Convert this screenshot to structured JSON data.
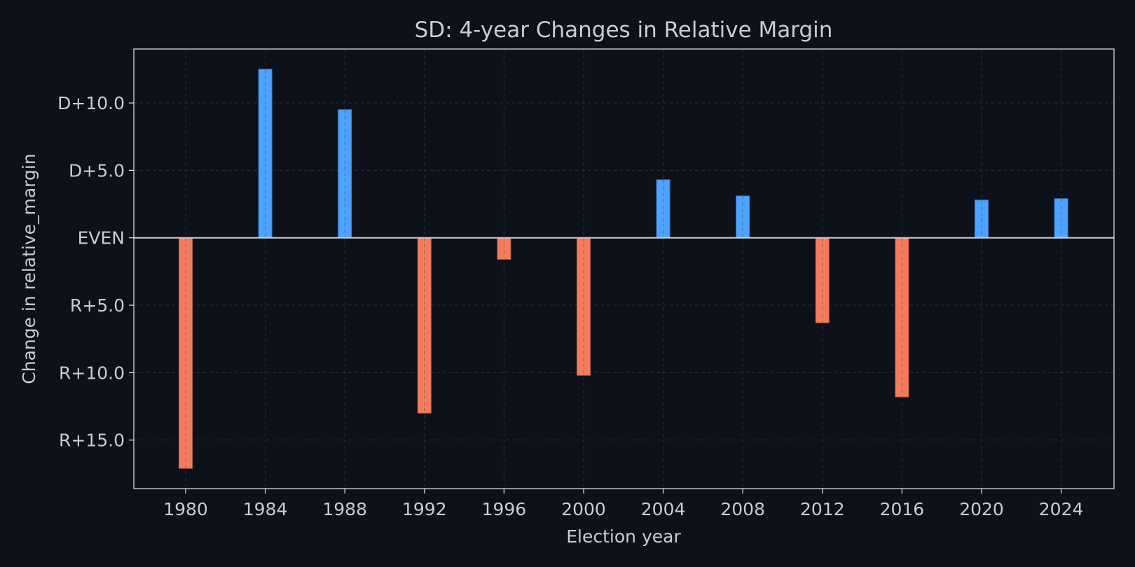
{
  "chart_data": {
    "type": "bar",
    "title": "SD: 4-year Changes in Relative Margin",
    "xlabel": "Election year",
    "ylabel": "Change in relative_margin",
    "categories": [
      "1980",
      "1984",
      "1988",
      "1992",
      "1996",
      "2000",
      "2004",
      "2008",
      "2012",
      "2016",
      "2020",
      "2024"
    ],
    "values": [
      -17.1,
      12.5,
      9.5,
      -13.0,
      -1.6,
      -10.2,
      4.3,
      3.1,
      -6.3,
      -11.8,
      2.8,
      2.9
    ],
    "ylim": [
      -18.6,
      14.0
    ],
    "y_ticks": [
      {
        "value": 10,
        "label": "D+10.0"
      },
      {
        "value": 5,
        "label": "D+5.0"
      },
      {
        "value": 0,
        "label": "EVEN"
      },
      {
        "value": -5,
        "label": "R+5.0"
      },
      {
        "value": -10,
        "label": "R+10.0"
      },
      {
        "value": -15,
        "label": "R+15.0"
      }
    ],
    "x_ticks": [
      "1980",
      "1984",
      "1988",
      "1992",
      "1996",
      "2000",
      "2004",
      "2008",
      "2012",
      "2016",
      "2020",
      "2024"
    ],
    "grid": true,
    "colors": {
      "background": "#0d111a",
      "positive": "#4da3ff",
      "negative": "#f47c5e",
      "text": "#c9ccd3",
      "axis": "#d8dbe0",
      "grid": "#2a2f3a",
      "zero_line": "#c9ccd3"
    }
  }
}
